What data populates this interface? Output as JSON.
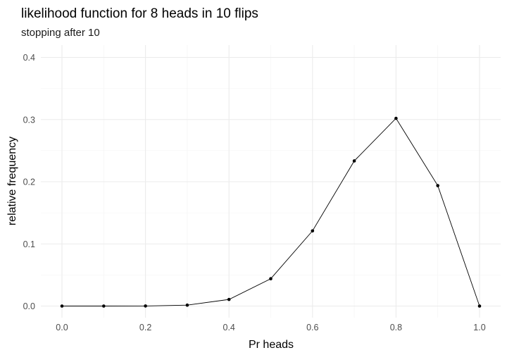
{
  "chart_data": {
    "type": "line",
    "title": "likelihood function for 8 heads in 10 flips",
    "subtitle": "stopping after 10",
    "xlabel": "Pr heads",
    "ylabel": "relative frequency",
    "xlim": [
      0,
      1
    ],
    "ylim": [
      0,
      0.4
    ],
    "x_ticks": [
      "0.0",
      "0.2",
      "0.4",
      "0.6",
      "0.8",
      "1.0"
    ],
    "y_ticks": [
      "0.0",
      "0.1",
      "0.2",
      "0.3",
      "0.4"
    ],
    "grid": true,
    "series": [
      {
        "x": [
          0.0,
          0.1,
          0.2,
          0.3,
          0.4,
          0.5,
          0.6,
          0.7,
          0.8,
          0.9,
          1.0
        ],
        "values": [
          0.0,
          4e-07,
          7.37e-05,
          0.0014467,
          0.0106168,
          0.0439453,
          0.1209324,
          0.2334744,
          0.3019899,
          0.1937102,
          0.0
        ]
      }
    ],
    "colors": {
      "line": "#000000",
      "grid": "#ebebeb",
      "background": "#ffffff"
    }
  }
}
